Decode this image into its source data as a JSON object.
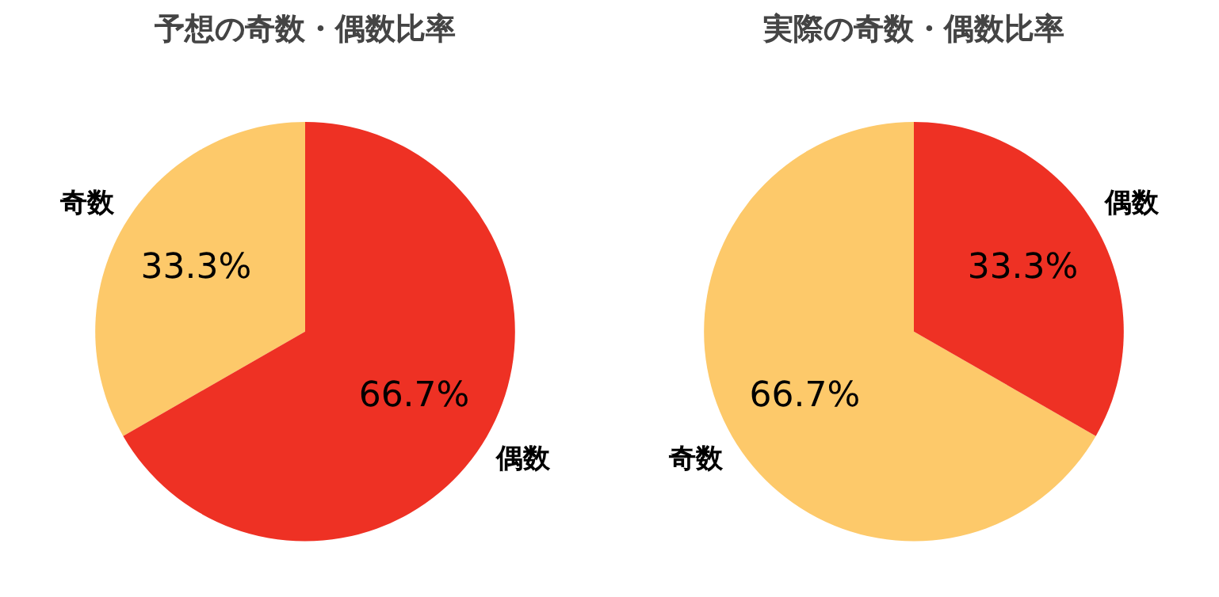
{
  "chart_data": [
    {
      "type": "pie",
      "title": "予想の奇数・偶数比率",
      "categories": [
        "奇数",
        "偶数"
      ],
      "values": [
        33.3,
        66.7
      ],
      "colors": [
        "#fdc96a",
        "#ee3124"
      ],
      "value_labels": [
        "33.3%",
        "66.7%"
      ]
    },
    {
      "type": "pie",
      "title": "実際の奇数・偶数比率",
      "categories": [
        "奇数",
        "偶数"
      ],
      "values": [
        66.7,
        33.3
      ],
      "colors": [
        "#fdc96a",
        "#ee3124"
      ],
      "value_labels": [
        "66.7%",
        "33.3%"
      ]
    }
  ]
}
